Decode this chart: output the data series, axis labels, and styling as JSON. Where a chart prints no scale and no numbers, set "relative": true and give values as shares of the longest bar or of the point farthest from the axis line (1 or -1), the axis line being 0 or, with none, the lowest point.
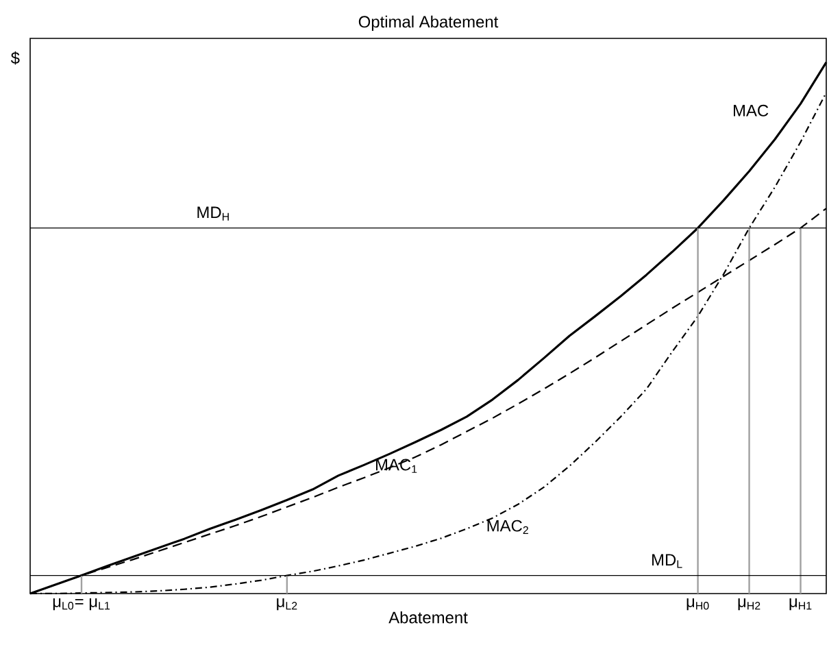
{
  "chart_data": {
    "type": "line",
    "title": "Optimal Abatement",
    "xlabel": "Abatement",
    "ylabel": "$",
    "relative": true,
    "tick_labels": "x",
    "categories": [
      null,
      null,
      "μ$_{L0}$= μ$_{L1}$",
      null,
      null,
      null,
      null,
      null,
      null,
      null,
      "μ$_{L2}$",
      null,
      null,
      null,
      null,
      null,
      null,
      null,
      null,
      null,
      null,
      null,
      null,
      null,
      null,
      null,
      "μ$_{H0}$",
      null,
      "μ$_{H2}$",
      null,
      "μ$_{H1}$",
      null
    ],
    "series": [
      {
        "name": "MAC",
        "color": "#000000",
        "line_style": "solid",
        "values": [
          0,
          0.017,
          0.034,
          0.052,
          0.069,
          0.086,
          0.103,
          0.122,
          0.139,
          0.157,
          0.176,
          0.196,
          0.222,
          0.242,
          0.263,
          0.285,
          0.308,
          0.333,
          0.365,
          0.402,
          0.443,
          0.485,
          0.522,
          0.56,
          0.6,
          0.643,
          0.688,
          0.74,
          0.795,
          0.855,
          0.922,
          1.0
        ]
      },
      {
        "name": "MAC$_{1}$",
        "color": "#000000",
        "line_style": "dashed",
        "values": [
          0,
          0.017,
          0.034,
          0.049,
          0.064,
          0.08,
          0.096,
          0.112,
          0.128,
          0.145,
          0.163,
          0.181,
          0.2,
          0.218,
          0.237,
          0.257,
          0.28,
          0.305,
          0.33,
          0.357,
          0.385,
          0.414,
          0.444,
          0.475,
          0.506,
          0.537,
          0.567,
          0.597,
          0.627,
          0.657,
          0.688,
          0.725
        ]
      },
      {
        "name": "MAC$_{2}$",
        "color": "#000000",
        "line_style": "dashdot",
        "values": [
          0,
          0,
          0.001,
          0.002,
          0.003,
          0.005,
          0.008,
          0.012,
          0.018,
          0.025,
          0.034,
          0.042,
          0.052,
          0.063,
          0.076,
          0.089,
          0.104,
          0.122,
          0.142,
          0.168,
          0.2,
          0.24,
          0.285,
          0.333,
          0.385,
          0.455,
          0.522,
          0.601,
          0.688,
          0.765,
          0.85,
          0.943
        ]
      },
      {
        "type": "bar",
        "color": "#a0a0a0",
        "values": [
          null,
          null,
          0.034,
          null,
          null,
          null,
          null,
          null,
          null,
          null,
          0.034,
          null,
          null,
          null,
          null,
          null,
          null,
          null,
          null,
          null,
          null,
          null,
          null,
          null,
          null,
          null,
          0.688,
          null,
          0.688,
          null,
          0.688,
          null
        ]
      }
    ],
    "ref_lines": [
      {
        "axis": "y",
        "value": 0.688,
        "label": "MD$_{H}$",
        "color": "#000000"
      },
      {
        "axis": "y",
        "value": 0.034,
        "label": "MD$_{L}$",
        "color": "#000000"
      }
    ]
  }
}
